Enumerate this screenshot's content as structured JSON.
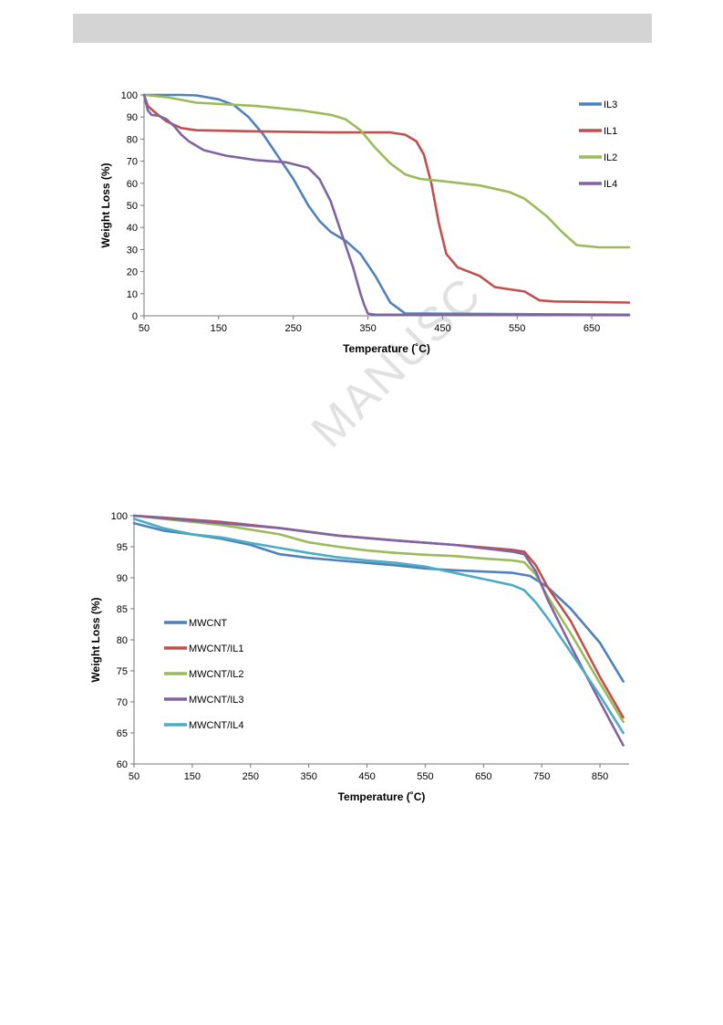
{
  "watermark": "MANUSC",
  "chart_data": [
    {
      "type": "line",
      "xlabel": "Temperature (˚C)",
      "ylabel": "Weight Loss (%)",
      "xlim": [
        50,
        700
      ],
      "ylim": [
        0,
        100
      ],
      "xticks": [
        50,
        150,
        250,
        350,
        450,
        550,
        650
      ],
      "yticks": [
        0,
        10,
        20,
        30,
        40,
        50,
        60,
        70,
        80,
        90,
        100
      ],
      "legend_position": "top-right",
      "series": [
        {
          "name": "IL3",
          "color": "#4f81bd",
          "x": [
            50,
            100,
            120,
            150,
            170,
            190,
            210,
            230,
            250,
            270,
            285,
            300,
            320,
            340,
            360,
            380,
            400,
            420,
            700
          ],
          "y": [
            100,
            100,
            99.8,
            98,
            95.5,
            90,
            82,
            72,
            62,
            50,
            43,
            38,
            34,
            28,
            18,
            6,
            1,
            1,
            0.5
          ]
        },
        {
          "name": "IL1",
          "color": "#c0504d",
          "x": [
            50,
            55,
            65,
            80,
            100,
            120,
            200,
            300,
            380,
            400,
            415,
            425,
            435,
            445,
            455,
            470,
            500,
            520,
            540,
            560,
            580,
            600,
            700
          ],
          "y": [
            100,
            95,
            92,
            88,
            85,
            84,
            83.5,
            83,
            83,
            82,
            79,
            73,
            60,
            42,
            28,
            22,
            18,
            13,
            12,
            11,
            7,
            6.5,
            6
          ]
        },
        {
          "name": "IL2",
          "color": "#9bbb59",
          "x": [
            50,
            80,
            120,
            200,
            260,
            300,
            320,
            340,
            360,
            380,
            400,
            420,
            450,
            500,
            540,
            560,
            590,
            610,
            630,
            660,
            700
          ],
          "y": [
            100,
            99,
            96.5,
            95,
            93,
            91,
            89,
            84,
            76,
            69,
            64,
            62,
            61,
            59,
            56,
            53,
            45,
            38,
            32,
            31,
            31
          ]
        },
        {
          "name": "IL4",
          "color": "#8064a2",
          "x": [
            50,
            55,
            60,
            70,
            80,
            90,
            100,
            110,
            130,
            160,
            200,
            240,
            270,
            285,
            300,
            310,
            320,
            330,
            340,
            345,
            350,
            360,
            400,
            700
          ],
          "y": [
            100,
            93,
            91,
            90.5,
            89,
            86,
            82,
            79,
            75,
            72.5,
            70.5,
            69.5,
            67,
            62,
            52,
            42,
            32,
            22,
            10,
            5,
            1,
            0.5,
            0.5,
            0.3
          ]
        }
      ]
    },
    {
      "type": "line",
      "xlabel": "Temperature (˚C)",
      "ylabel": "Weight Loss (%)",
      "xlim": [
        50,
        900
      ],
      "ylim": [
        60,
        100
      ],
      "xticks": [
        50,
        150,
        250,
        350,
        450,
        550,
        650,
        750,
        850
      ],
      "yticks": [
        60,
        65,
        70,
        75,
        80,
        85,
        90,
        95,
        100
      ],
      "legend_position": "left",
      "series": [
        {
          "name": "MWCNT",
          "color": "#4f81bd",
          "x": [
            50,
            100,
            150,
            200,
            250,
            300,
            350,
            400,
            450,
            500,
            550,
            600,
            650,
            700,
            730,
            760,
            800,
            850,
            890
          ],
          "y": [
            98.8,
            97.6,
            97,
            96.3,
            95.3,
            93.8,
            93.2,
            92.8,
            92.4,
            92,
            91.5,
            91.2,
            91,
            90.8,
            90.3,
            88.5,
            85,
            79.5,
            73.3
          ]
        },
        {
          "name": "MWCNT/IL1",
          "color": "#c0504d",
          "x": [
            50,
            100,
            200,
            300,
            400,
            500,
            600,
            700,
            720,
            740,
            760,
            800,
            850,
            890
          ],
          "y": [
            100,
            99.7,
            99,
            98,
            96.8,
            96,
            95.3,
            94.5,
            94.2,
            92,
            88.5,
            83,
            74,
            67.5
          ]
        },
        {
          "name": "MWCNT/IL2",
          "color": "#9bbb59",
          "x": [
            50,
            100,
            200,
            300,
            350,
            400,
            450,
            500,
            550,
            600,
            650,
            700,
            720,
            740,
            760,
            800,
            850,
            890
          ],
          "y": [
            100,
            99.5,
            98.5,
            97,
            95.7,
            95,
            94.4,
            94,
            93.7,
            93.5,
            93.1,
            92.8,
            92.5,
            90.5,
            87,
            81,
            73,
            66.8
          ]
        },
        {
          "name": "MWCNT/IL3",
          "color": "#8064a2",
          "x": [
            50,
            100,
            200,
            300,
            400,
            500,
            600,
            700,
            720,
            740,
            760,
            800,
            850,
            890
          ],
          "y": [
            100,
            99.6,
            98.8,
            98,
            96.8,
            96,
            95.3,
            94.2,
            93.8,
            91,
            86.5,
            79,
            70,
            63
          ]
        },
        {
          "name": "MWCNT/IL4",
          "color": "#4bacc6",
          "x": [
            50,
            100,
            150,
            200,
            250,
            300,
            350,
            400,
            450,
            500,
            550,
            600,
            650,
            700,
            720,
            740,
            760,
            800,
            850,
            890
          ],
          "y": [
            99.5,
            98,
            97,
            96.5,
            95.6,
            94.8,
            94,
            93.3,
            92.8,
            92.4,
            91.8,
            90.8,
            89.8,
            88.8,
            88,
            86,
            83.5,
            78,
            71,
            65
          ]
        }
      ]
    }
  ]
}
